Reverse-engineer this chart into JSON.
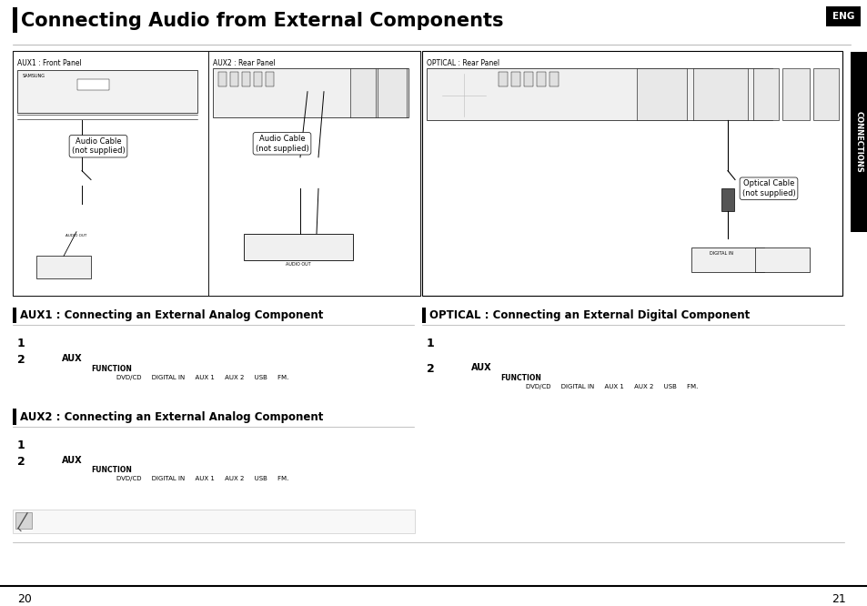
{
  "title": "Connecting Audio from External Components",
  "eng_label": "ENG",
  "connections_label": "CONNECTIONS",
  "bg_color": "#ffffff",
  "title_color": "#000000",
  "title_fontsize": 16,
  "page_left": "20",
  "page_right": "21",
  "diag_left_box1_label": "AUX1 : Front Panel",
  "diag_left_box2_label": "AUX2 : Rear Panel",
  "audio_cable1": "Audio Cable\n(not supplied)",
  "audio_cable2": "Audio Cable\n(not supplied)",
  "diag_right_label": "OPTICAL : Rear Panel",
  "optical_cable": "Optical Cable\n(not supplied)",
  "sec1_heading": "AUX1 : Connecting an External Analog Component",
  "sec1_s1": "1",
  "sec1_s2": "2",
  "sec1_aux": "AUX",
  "sec1_func": "FUNCTION",
  "sec1_items": "DVD/CD     DIGITAL IN     AUX 1     AUX 2     USB     FM.",
  "sec2_heading": "AUX2 : Connecting an External Analog Component",
  "sec2_s1": "1",
  "sec2_s2": "2",
  "sec2_aux": "AUX",
  "sec2_func": "FUNCTION",
  "sec2_items": "DVD/CD     DIGITAL IN     AUX 1     AUX 2     USB     FM.",
  "sec3_heading": "OPTICAL : Connecting an External Digital Component",
  "sec3_s1": "1",
  "sec3_s2": "2",
  "sec3_aux": "AUX",
  "sec3_func": "FUNCTION",
  "sec3_items": "DVD/CD     DIGITAL IN     AUX 1     AUX 2     USB     FM."
}
